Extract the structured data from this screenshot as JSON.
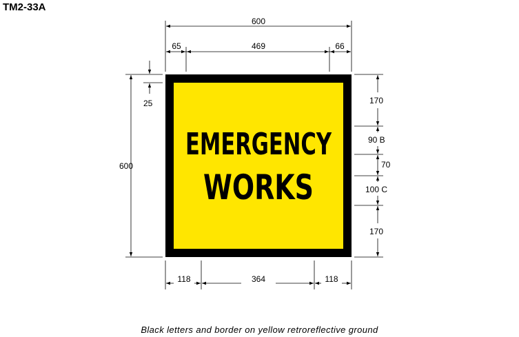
{
  "sign_code": "TM2-33A",
  "sign": {
    "line1": "EMERGENCY",
    "line2": "WORKS",
    "background_color": "#FFE600",
    "border_color": "#000000",
    "text_color": "#000000"
  },
  "dimensions": {
    "overall_width": "600",
    "left_margin": "65",
    "text_width": "469",
    "right_margin": "66",
    "overall_height": "600",
    "border": "25",
    "top_space": "170",
    "line1_height": "90 B",
    "line_gap": "70",
    "line2_height": "100 C",
    "bottom_space": "170",
    "bottom_left": "118",
    "bottom_mid": "364",
    "bottom_right": "118"
  },
  "caption": "Black letters and border on yellow retroreflective ground"
}
